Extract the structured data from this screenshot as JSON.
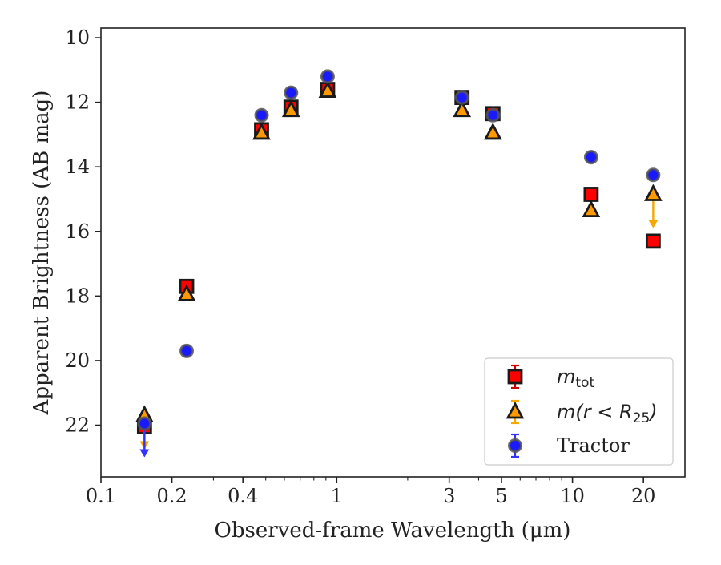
{
  "chart_data": {
    "type": "scatter",
    "title": "",
    "xlabel": "Observed-frame Wavelength (μm)",
    "ylabel": "Apparent Brightness (AB mag)",
    "x_scale": "log",
    "x_range": [
      0.1,
      30
    ],
    "y_range": [
      23.6,
      9.7
    ],
    "y_inverted": true,
    "grid": false,
    "legend_position": "bottom-right",
    "x_ticks": [
      0.1,
      0.2,
      0.4,
      1,
      3,
      5,
      10,
      20
    ],
    "x_tick_labels": [
      "0.1",
      "0.2",
      "0.4",
      "1",
      "3",
      "5",
      "10",
      "20"
    ],
    "y_ticks": [
      10,
      12,
      14,
      16,
      18,
      20,
      22
    ],
    "y_tick_labels": [
      "10",
      "12",
      "14",
      "16",
      "18",
      "20",
      "22"
    ],
    "series": [
      {
        "name": "m_tot",
        "legend_main": "m",
        "legend_sub": "tot",
        "marker": "square",
        "face_color": "#ff0000",
        "edge_color": "#1a1a1a",
        "error_color": "#cc0000",
        "x": [
          0.153,
          0.231,
          0.48,
          0.64,
          0.915,
          3.4,
          4.6,
          12,
          22
        ],
        "y": [
          22.05,
          17.7,
          12.85,
          12.15,
          11.6,
          11.85,
          12.35,
          14.85,
          16.3
        ],
        "upper_limits": [
          false,
          false,
          false,
          false,
          false,
          false,
          false,
          false,
          false
        ]
      },
      {
        "name": "m(r < R25)",
        "legend_main": "m(r < R",
        "legend_sub": "25",
        "legend_tail": ")",
        "marker": "triangle",
        "face_color": "#ff9900",
        "edge_color": "#1a1a1a",
        "error_color": "#f5a800",
        "x": [
          0.153,
          0.231,
          0.48,
          0.64,
          0.915,
          3.4,
          4.6,
          12,
          22
        ],
        "y": [
          21.7,
          17.95,
          12.95,
          12.25,
          11.65,
          12.25,
          12.95,
          15.35,
          14.85
        ],
        "upper_limits": [
          true,
          false,
          false,
          false,
          false,
          false,
          false,
          false,
          true
        ]
      },
      {
        "name": "Tractor",
        "marker": "circle",
        "face_color": "#1a1aff",
        "edge_color": "#555555",
        "error_color": "#3333ff",
        "x": [
          0.153,
          0.231,
          0.48,
          0.64,
          0.915,
          3.4,
          4.6,
          12,
          22
        ],
        "y": [
          21.95,
          19.7,
          12.4,
          11.7,
          11.2,
          11.85,
          12.4,
          13.7,
          14.25
        ],
        "upper_limits": [
          true,
          false,
          false,
          false,
          false,
          false,
          false,
          false,
          false
        ]
      }
    ]
  }
}
